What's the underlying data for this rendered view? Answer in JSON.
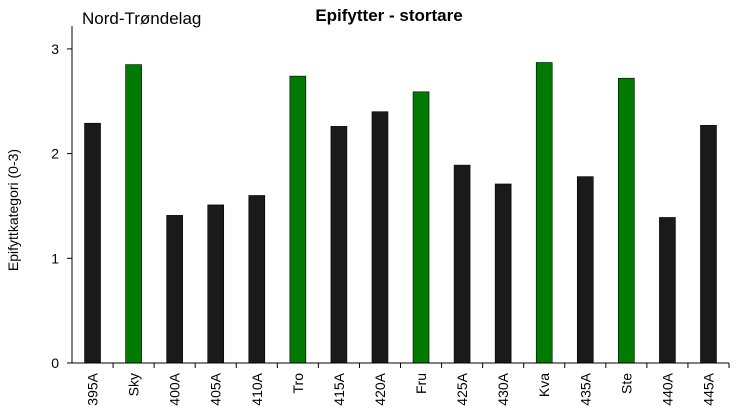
{
  "chart_data": {
    "type": "bar",
    "title": "Epifytter - stortare",
    "region_label": "Nord-Trøndelag",
    "ylabel": "Epifyttkategori  (0-3)",
    "xlabel": "",
    "ylim": [
      0,
      3.2
    ],
    "yticks": [
      0,
      1,
      2,
      3
    ],
    "grid": false,
    "legend": "none",
    "categories": [
      "395A",
      "Sky",
      "400A",
      "405A",
      "410A",
      "Tro",
      "415A",
      "420A",
      "Fru",
      "425A",
      "430A",
      "Kva",
      "435A",
      "Ste",
      "440A",
      "445A"
    ],
    "values": [
      2.29,
      2.85,
      1.41,
      1.51,
      1.6,
      2.74,
      2.26,
      2.4,
      2.59,
      1.89,
      1.71,
      2.87,
      1.78,
      2.72,
      1.39,
      2.27
    ],
    "bar_colors": [
      "#1a1a1a",
      "#007a00",
      "#1a1a1a",
      "#1a1a1a",
      "#1a1a1a",
      "#007a00",
      "#1a1a1a",
      "#1a1a1a",
      "#007a00",
      "#1a1a1a",
      "#1a1a1a",
      "#007a00",
      "#1a1a1a",
      "#007a00",
      "#1a1a1a",
      "#1a1a1a"
    ],
    "axis_color": "#000000"
  }
}
